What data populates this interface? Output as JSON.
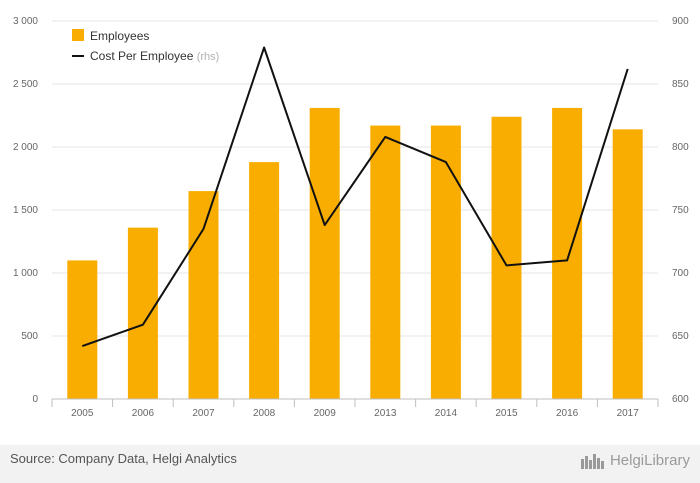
{
  "chart_data": {
    "type": "bar",
    "categories": [
      "2005",
      "2006",
      "2007",
      "2008",
      "2009",
      "2013",
      "2014",
      "2015",
      "2016",
      "2017"
    ],
    "series": [
      {
        "name": "Employees",
        "type": "bar",
        "axis": "left",
        "color": "#f9ad00",
        "values": [
          1100,
          1360,
          1650,
          1880,
          2310,
          2170,
          2170,
          2240,
          2310,
          2140
        ]
      },
      {
        "name": "Cost Per Employee",
        "legend_suffix": "(rhs)",
        "type": "line",
        "axis": "right",
        "color": "#111111",
        "values": [
          642,
          659,
          735,
          879,
          738,
          808,
          788,
          706,
          710,
          862
        ]
      }
    ],
    "left_axis": {
      "ylim": [
        0,
        3000
      ],
      "ticks": [
        0,
        500,
        1000,
        1500,
        2000,
        2500,
        3000
      ],
      "tick_labels": [
        "0",
        "500",
        "1 000",
        "1 500",
        "2 000",
        "2 500",
        "3 000"
      ]
    },
    "right_axis": {
      "ylim": [
        600,
        900
      ],
      "ticks": [
        600,
        650,
        700,
        750,
        800,
        850,
        900
      ],
      "tick_labels": [
        "600",
        "650",
        "700",
        "750",
        "800",
        "850",
        "900"
      ]
    },
    "grid": true,
    "legend_position": "top-left"
  },
  "footer": {
    "source": "Source: Company Data, Helgi Analytics",
    "brand": "HelgiLibrary"
  }
}
